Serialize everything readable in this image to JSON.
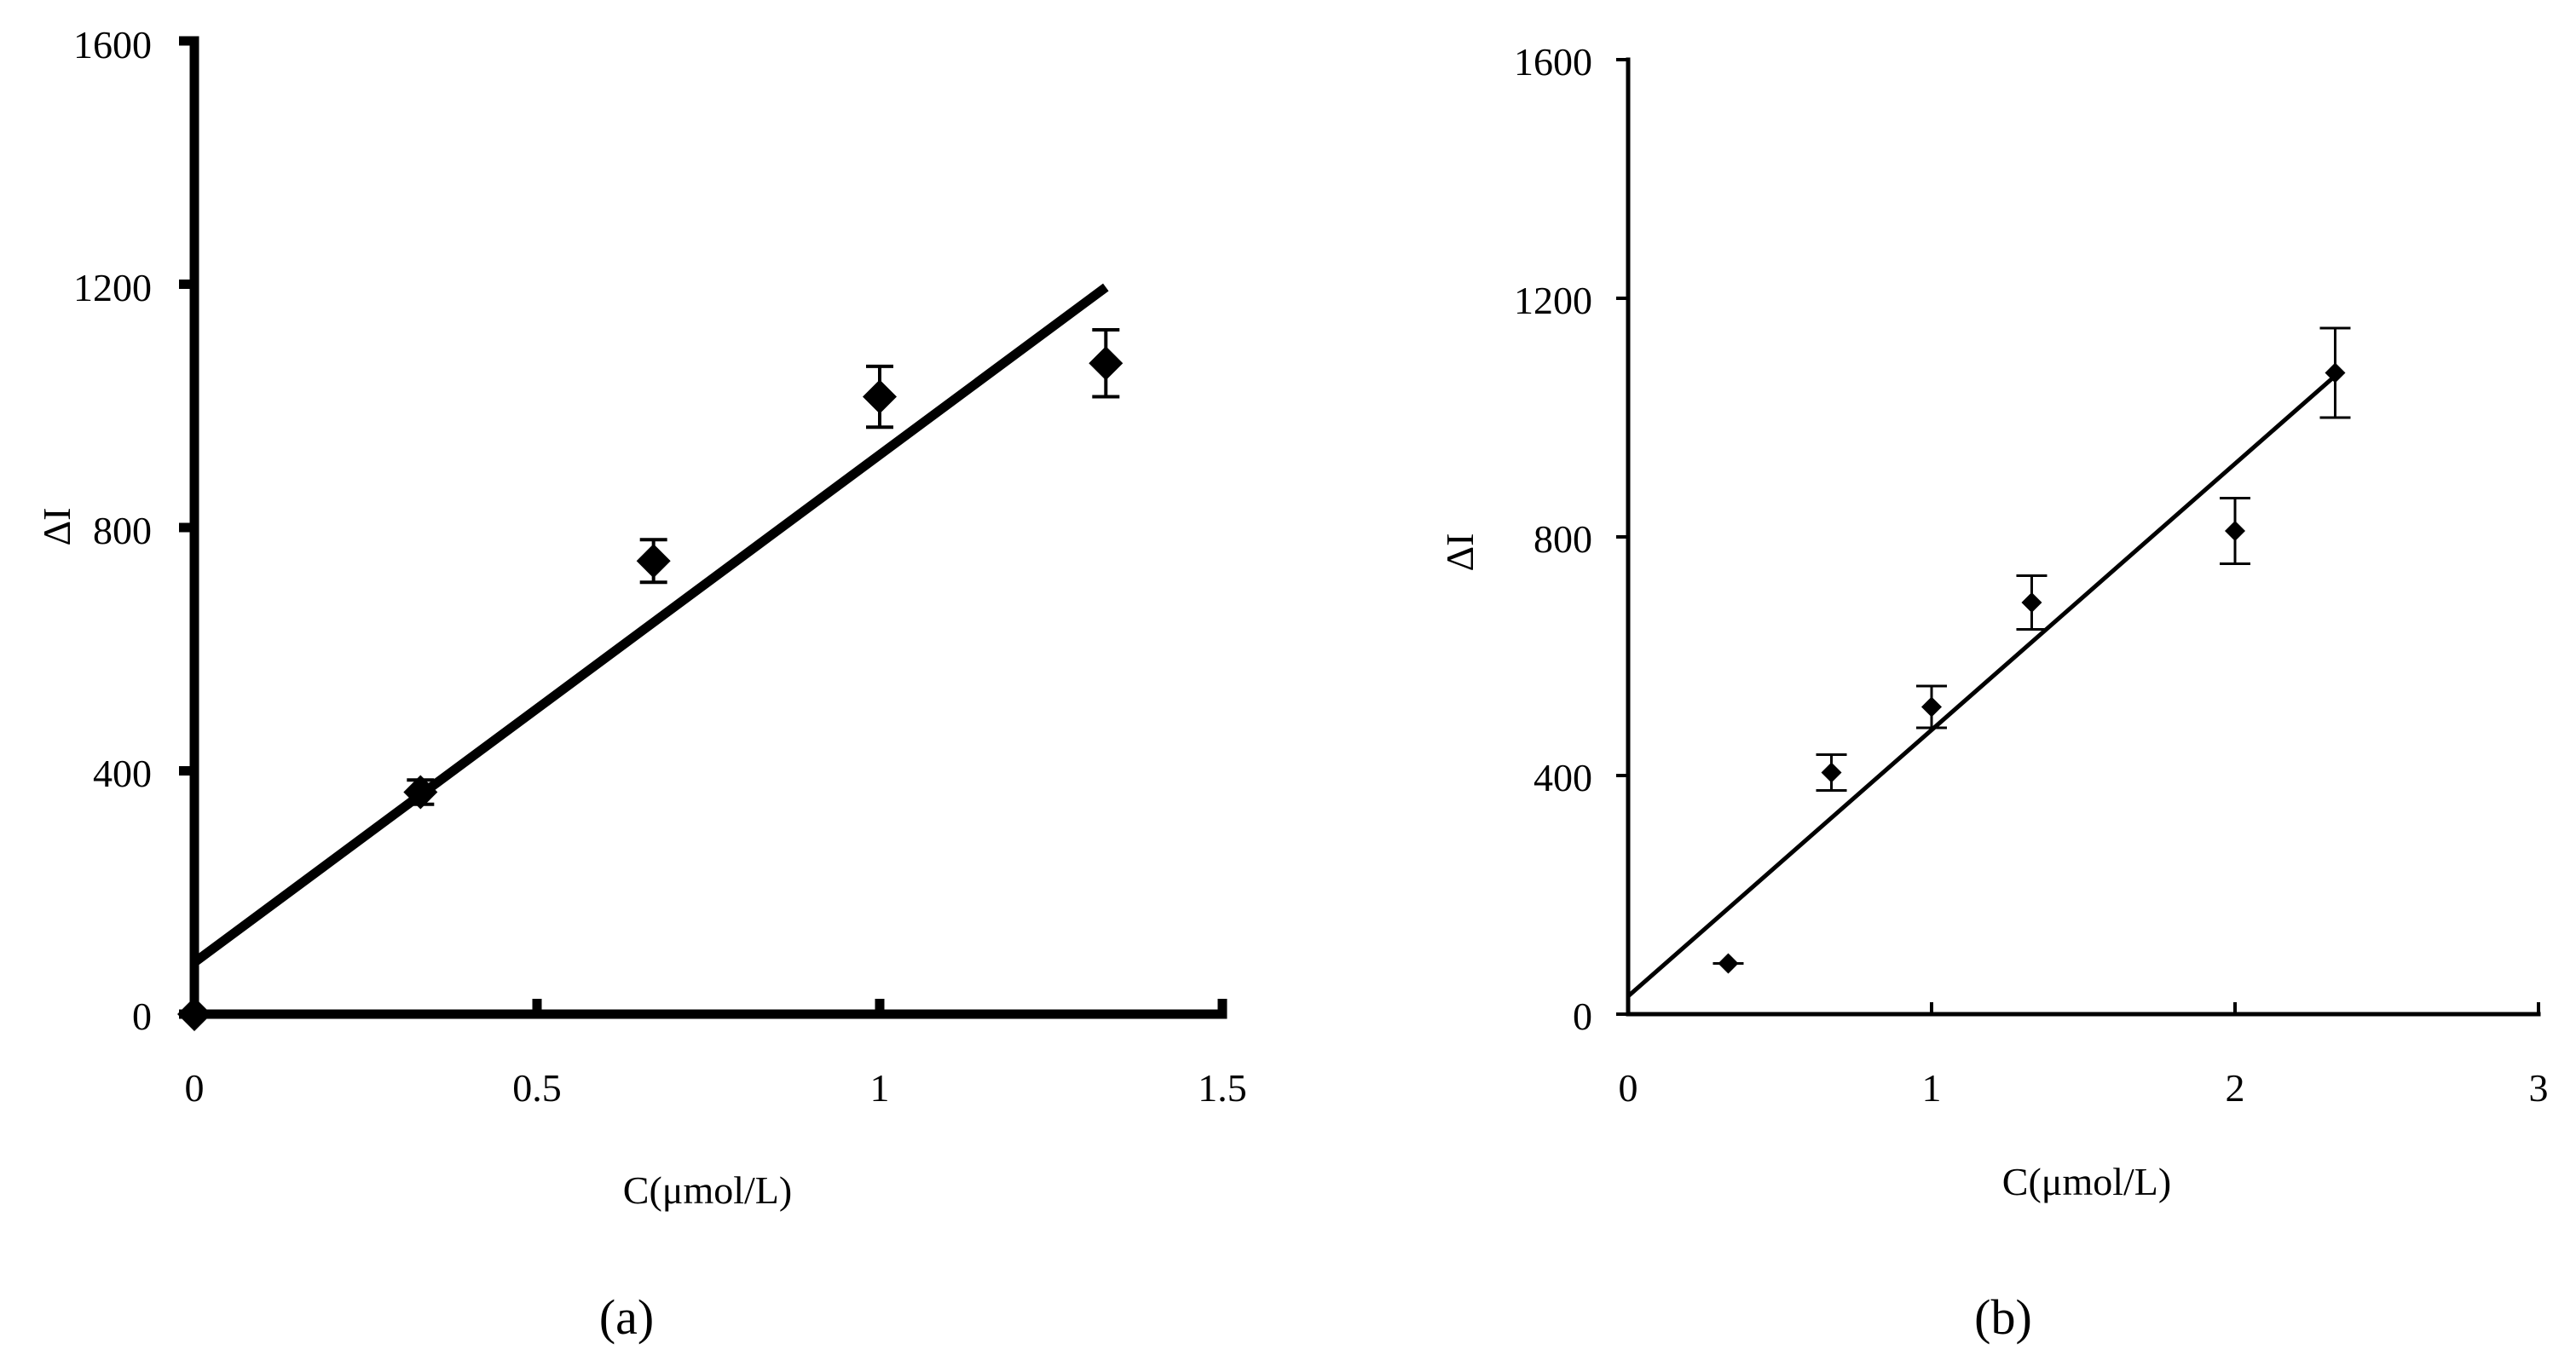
{
  "colors": {
    "ink": "#000000",
    "background": "#ffffff"
  },
  "chart_data": [
    {
      "type": "scatter",
      "panel_label": "(a)",
      "xlabel": "C(μmol/L)",
      "ylabel": "ΔI",
      "xlim": [
        0,
        1.5
      ],
      "ylim": [
        0,
        1600
      ],
      "x_ticks": [
        0,
        0.5,
        1,
        1.5
      ],
      "x_tick_labels": [
        "0",
        "0.5",
        "1",
        "1.5"
      ],
      "y_ticks": [
        0,
        400,
        800,
        1200,
        1600
      ],
      "y_tick_labels": [
        "0",
        "400",
        "800",
        "1200",
        "1600"
      ],
      "grid": false,
      "marker": "diamond",
      "points": [
        {
          "x": 0,
          "y": 0,
          "err": 0
        },
        {
          "x": 0.33,
          "y": 365,
          "err": 20
        },
        {
          "x": 0.67,
          "y": 745,
          "err": 35
        },
        {
          "x": 1.0,
          "y": 1015,
          "err": 50
        },
        {
          "x": 1.33,
          "y": 1070,
          "err": 55
        }
      ],
      "fit_line": {
        "x": [
          0,
          1.33
        ],
        "y": [
          85,
          1195
        ]
      }
    },
    {
      "type": "scatter",
      "panel_label": "(b)",
      "xlabel": "C(μmol/L)",
      "ylabel": "ΔI",
      "xlim": [
        0,
        3
      ],
      "ylim": [
        0,
        1600
      ],
      "x_ticks": [
        0,
        1,
        2,
        3
      ],
      "x_tick_labels": [
        "0",
        "1",
        "2",
        "3"
      ],
      "y_ticks": [
        0,
        400,
        800,
        1200,
        1600
      ],
      "y_tick_labels": [
        "0",
        "400",
        "800",
        "1200",
        "1600"
      ],
      "grid": false,
      "marker": "diamond",
      "points": [
        {
          "x": 0.33,
          "y": 85,
          "err": 0
        },
        {
          "x": 0.67,
          "y": 405,
          "err": 30
        },
        {
          "x": 1.0,
          "y": 515,
          "err": 35
        },
        {
          "x": 1.33,
          "y": 690,
          "err": 45
        },
        {
          "x": 2.0,
          "y": 810,
          "err": 55
        },
        {
          "x": 2.33,
          "y": 1075,
          "err": 75
        }
      ],
      "fit_line": {
        "x": [
          0,
          2.33
        ],
        "y": [
          30,
          1070
        ]
      }
    }
  ]
}
